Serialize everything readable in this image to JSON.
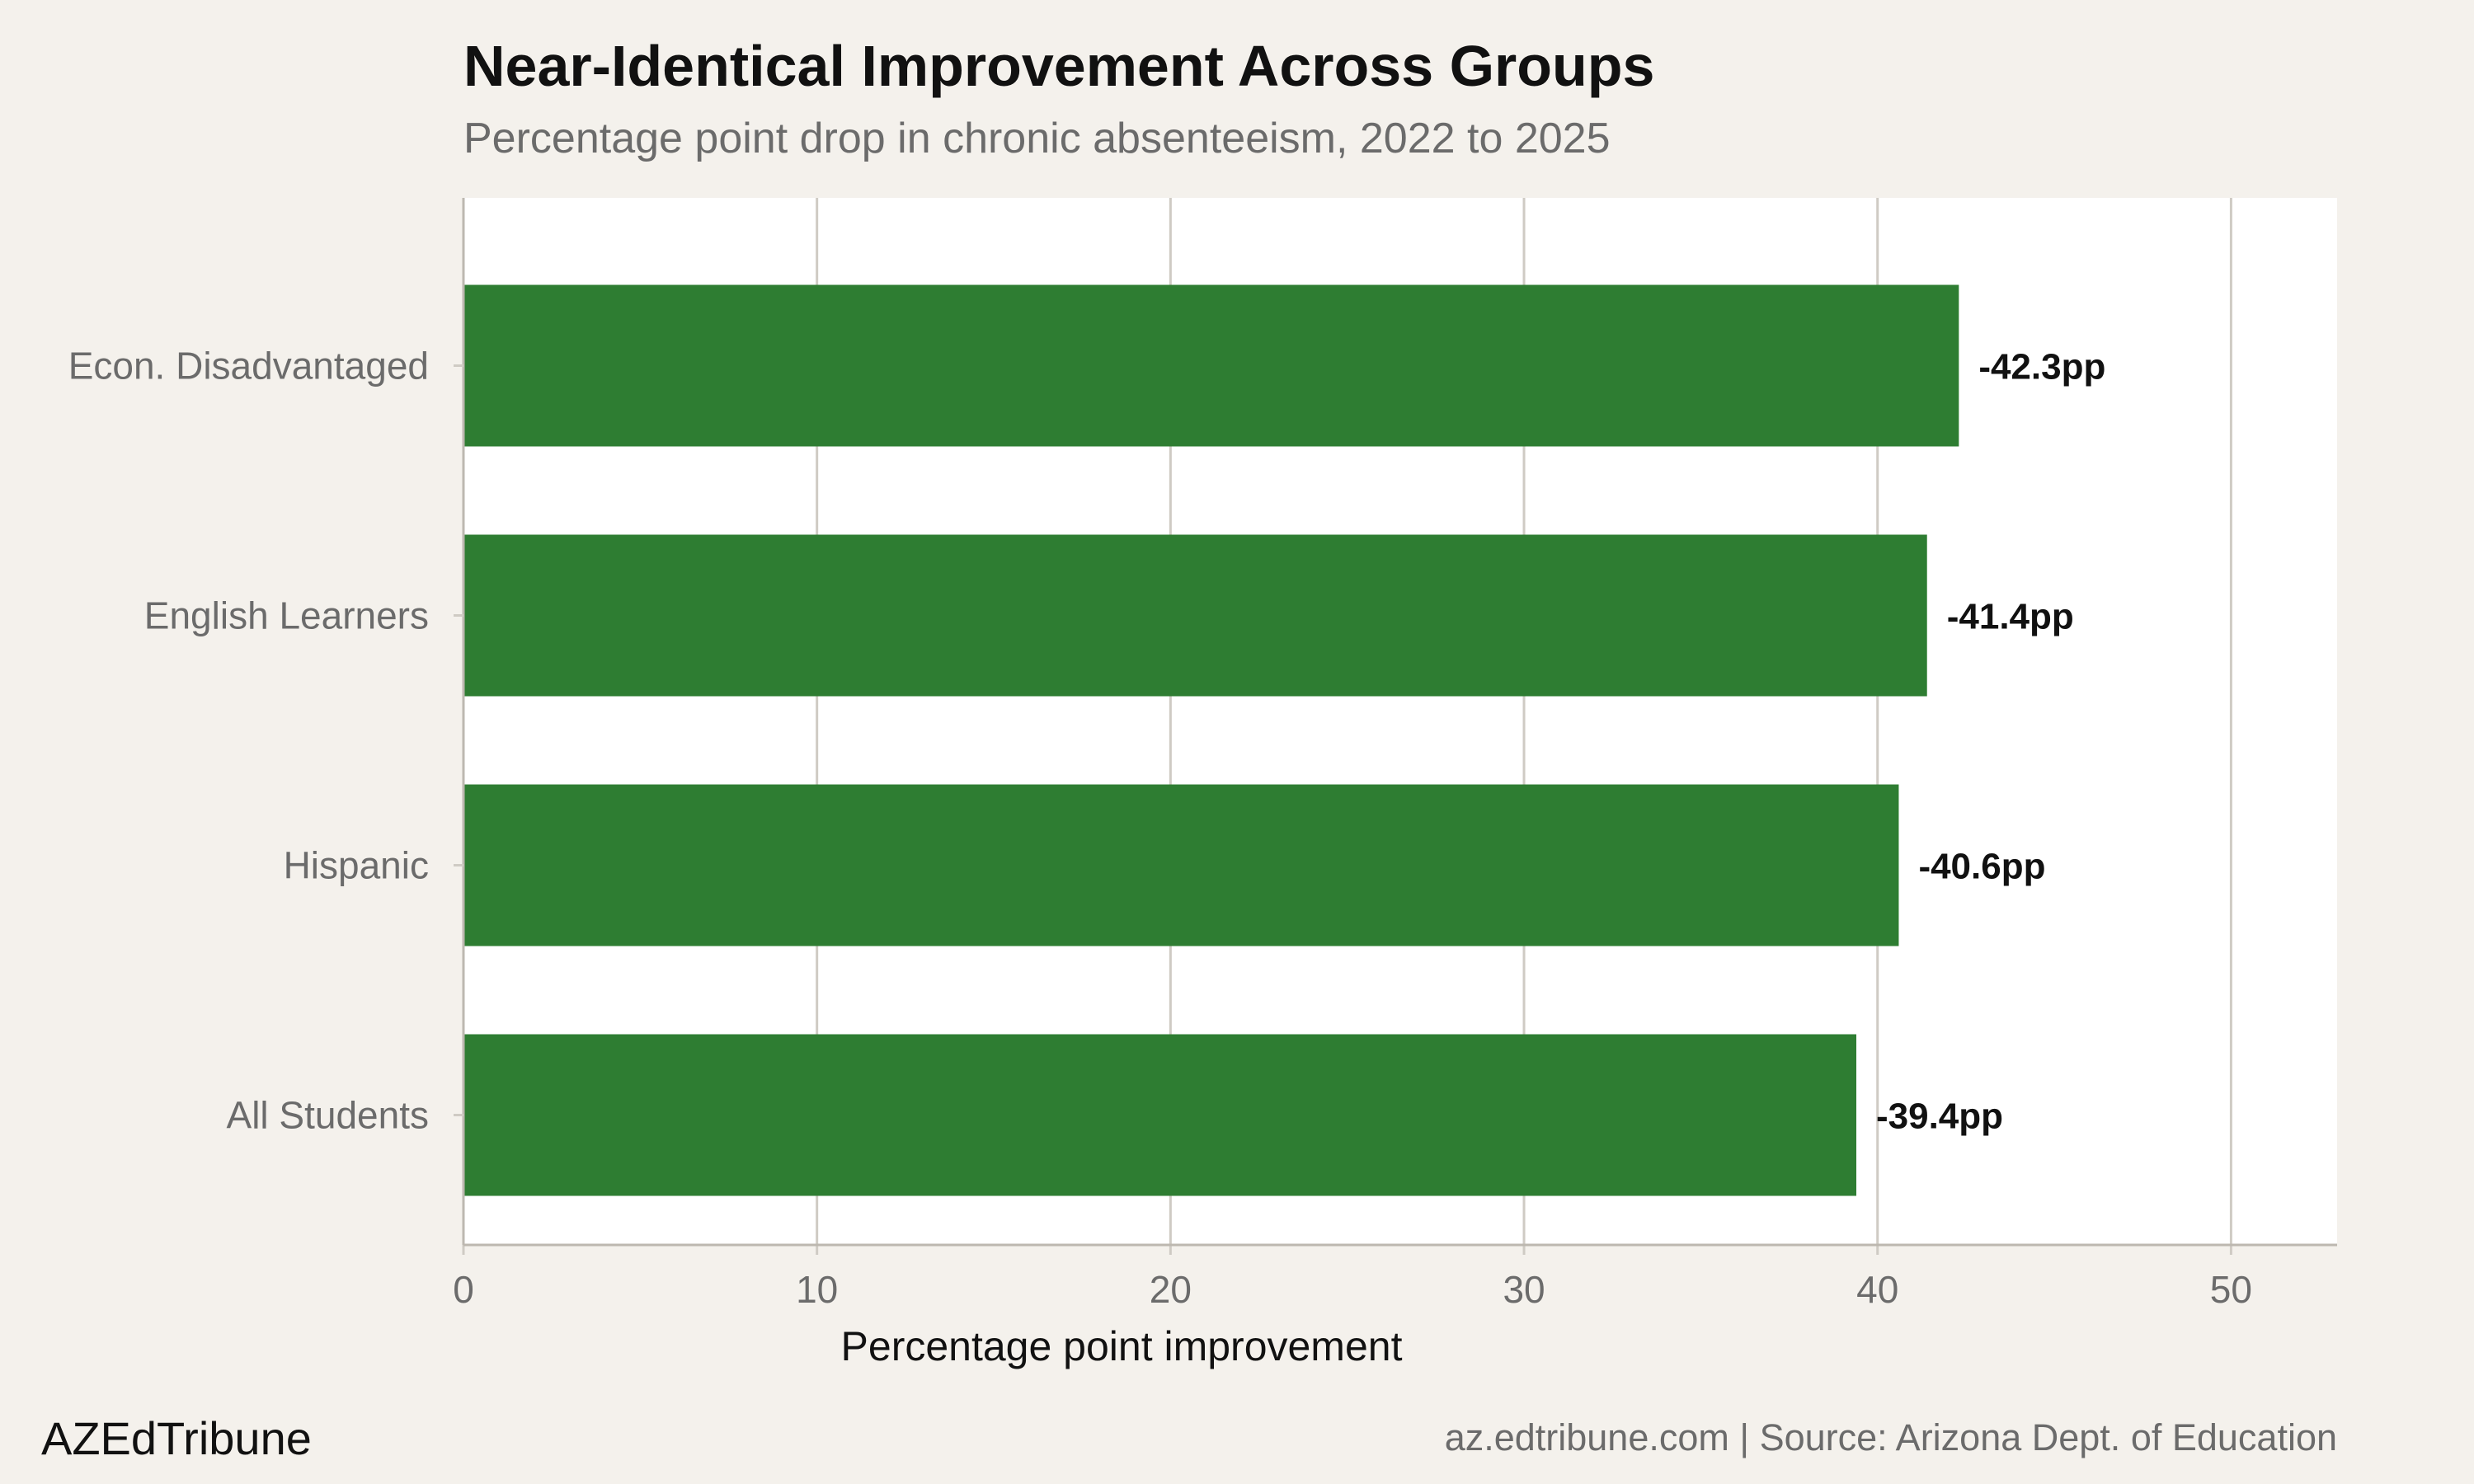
{
  "title": "Near-Identical Improvement Across Groups",
  "subtitle": "Percentage point drop in chronic absenteeism, 2022 to 2025",
  "footer": {
    "brand": "AZEdTribune",
    "source": "az.edtribune.com | Source: Arizona Dept. of Education"
  },
  "colors": {
    "background": "#f4f1ec",
    "plot_background": "#ffffff",
    "bar": "#2e7d32",
    "gridline": "#cfcbc4",
    "axis_text": "#6b6b6b",
    "label_text": "#111111"
  },
  "chart_data": {
    "type": "bar",
    "orientation": "horizontal",
    "categories": [
      "Econ. Disadvantaged",
      "English Learners",
      "Hispanic",
      "All Students"
    ],
    "values": [
      42.3,
      41.4,
      40.6,
      39.4
    ],
    "data_labels": [
      "-42.3pp",
      "-41.4pp",
      "-40.6pp",
      "-39.4pp"
    ],
    "xlabel": "Percentage point improvement",
    "ylabel": "",
    "xlim": [
      0,
      53
    ],
    "xticks": [
      0,
      10,
      20,
      30,
      40,
      50
    ],
    "grid": true,
    "legend": "none"
  }
}
